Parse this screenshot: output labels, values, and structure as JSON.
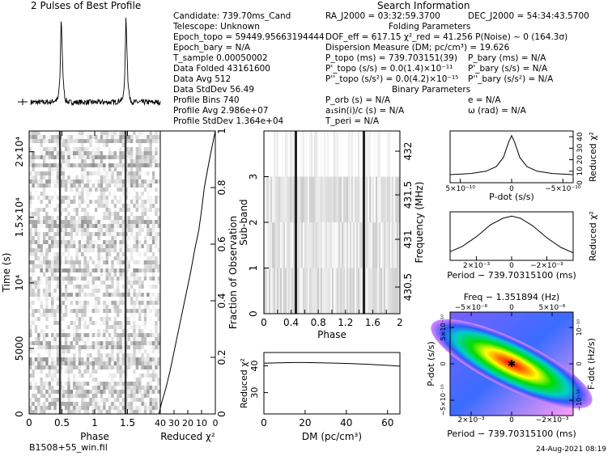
{
  "header": {
    "profile_title": "2 Pulses of Best Profile",
    "search_title": "Search Information",
    "folding_title": "Folding Parameters",
    "binary_title": "Binary Parameters"
  },
  "info_left": [
    "Candidate:  739.70ms_Cand",
    "Telescope:  Unknown",
    "Epoch_topo = 59449.95663194444",
    "Epoch_bary = N/A",
    "T_sample   0.00050002",
    "Data Folded   43161600",
    "Data Avg   512",
    "Data StdDev   56.49",
    "Profile Bins   740",
    "Profile Avg   2.986e+07",
    "Profile StdDev   1.364e+04"
  ],
  "search_info": {
    "ra": "RA_J2000 = 03:32:59.3700",
    "dec": "DEC_J2000 = 54:34:43.5700",
    "dof_line": "DOF_eff = 617.15  χ²_red = 41.256  P(Noise) ~ 0   (164.3σ)",
    "dm_line": "Dispersion Measure (DM; pc/cm³) = 19.626",
    "p_topo": "P_topo (ms) =  739.703151(39)",
    "pd_topo": "P'_topo (s/s) = 0.0(1.4)×10⁻¹¹",
    "pdd_topo": "P''_topo (s/s²) = 0.0(4.2)×10⁻¹⁵",
    "p_bary": "P_bary (ms) = N/A",
    "pd_bary": "P'_bary (s/s) = N/A",
    "pdd_bary": "P''_bary (s/s²) = N/A",
    "p_orb": "P_orb (s) = N/A",
    "a1": "a₁sin(i)/c (s) = N/A",
    "t_peri": "T_peri = N/A",
    "ecc": "e = N/A",
    "omega": "ω (rad) = N/A"
  },
  "footer": {
    "filename": "B1508+55_win.fil",
    "timestamp": "24-Aug-2021 08:19"
  },
  "colors": {
    "ink": "#000000",
    "grid_dark": "#222222"
  },
  "chart_data": [
    {
      "type": "line",
      "name": "profile",
      "title": "2 Pulses of Best Profile",
      "xlim": [
        0,
        2
      ],
      "x": [
        0,
        0.3,
        0.42,
        0.45,
        0.47,
        0.5,
        0.53,
        0.58,
        0.7,
        1.0,
        1.3,
        1.42,
        1.45,
        1.47,
        1.5,
        1.53,
        1.58,
        1.7,
        2.0
      ],
      "y": [
        0.05,
        0.05,
        0.08,
        0.3,
        1.0,
        0.3,
        0.08,
        0.05,
        0.05,
        0.05,
        0.05,
        0.08,
        0.3,
        1.0,
        0.3,
        0.08,
        0.05,
        0.05,
        0.05
      ]
    },
    {
      "type": "heatmap",
      "name": "time-phase",
      "xlabel": "Phase",
      "ylabel": "Time (s)",
      "xlim": [
        0,
        2
      ],
      "ylim": [
        0,
        21582
      ],
      "xticks": [
        "0",
        "0.5",
        "1",
        "1.5"
      ],
      "yticks": [
        "0",
        "5000",
        "10⁴",
        "1.5×10⁴",
        "2×10⁴"
      ],
      "ytick_values": [
        0,
        5000,
        10000,
        15000,
        20000
      ],
      "pulse_phases": [
        0.47,
        1.47
      ]
    },
    {
      "type": "line",
      "name": "reduced-chi2-vs-time",
      "xlabel": "Reduced χ²",
      "ylabel": "Fraction of Observation",
      "xticks": [
        "40",
        "30",
        "20",
        "10",
        "0"
      ],
      "xlim": [
        40,
        0
      ],
      "yticks": [
        "0",
        "0.2",
        "0.4",
        "0.6",
        "0.8",
        "1"
      ],
      "ylim": [
        0,
        1
      ],
      "x": [
        0,
        3,
        5,
        8,
        10,
        12,
        15,
        18,
        21,
        24,
        27,
        30,
        33,
        36,
        39,
        41
      ],
      "y": [
        1,
        0.93,
        0.88,
        0.8,
        0.72,
        0.65,
        0.58,
        0.5,
        0.43,
        0.36,
        0.29,
        0.22,
        0.15,
        0.09,
        0.04,
        0
      ]
    },
    {
      "type": "heatmap",
      "name": "subband-phase",
      "xlabel": "Phase",
      "ylabel": "Sub-band",
      "y2label": "Frequency (MHz)",
      "xticks": [
        "0",
        "0.2",
        "0.4",
        "0.6",
        "0.8",
        "1",
        "1.2",
        "1.4",
        "1.6",
        "1.8",
        "2"
      ],
      "xlim": [
        0,
        2
      ],
      "yticks": [
        "0",
        "1",
        "2",
        "3"
      ],
      "ylim": [
        0,
        4
      ],
      "y2ticks": [
        "430.5",
        "431",
        "431.5",
        "432"
      ],
      "pulse_phases": [
        0.47,
        1.47
      ]
    },
    {
      "type": "line",
      "name": "chi2-vs-dm",
      "xlabel": "DM (pc/cm³)",
      "ylabel": "Reduced χ²",
      "xticks": [
        "0",
        "20",
        "40",
        "60"
      ],
      "xlim": [
        0,
        66
      ],
      "yticks": [
        "30",
        "40"
      ],
      "ylim": [
        22,
        45
      ],
      "x": [
        0,
        5,
        10,
        15,
        19.6,
        25,
        30,
        40,
        50,
        60,
        66
      ],
      "y": [
        41.0,
        41.1,
        41.2,
        41.25,
        41.26,
        41.2,
        41.1,
        40.9,
        40.6,
        40.2,
        39.9
      ]
    },
    {
      "type": "line",
      "name": "chi2-vs-pdot",
      "xlabel": "P-dot (s/s)",
      "y2label": "Reduced χ²",
      "xticks": [
        "5×10⁻¹⁰",
        "0",
        "−5×10⁻¹⁰"
      ],
      "xlim": [
        6e-10,
        -6e-10
      ],
      "yticks": [
        "0",
        "10",
        "20",
        "30",
        "40"
      ],
      "ylim": [
        0,
        45
      ],
      "x": [
        6e-10,
        4e-10,
        2.5e-10,
        1.5e-10,
        8e-11,
        3e-11,
        0,
        -3e-11,
        -8e-11,
        -1.5e-10,
        -2.5e-10,
        -4e-10,
        -6e-10
      ],
      "y": [
        7,
        8,
        10,
        14,
        22,
        35,
        41,
        35,
        22,
        14,
        10,
        8,
        7
      ]
    },
    {
      "type": "line",
      "name": "chi2-vs-period",
      "xlabel": "Period − 739.70315100 (ms)",
      "y2label": "Reduced χ²",
      "xticks": [
        "2×10⁻³",
        "0",
        "−2×10⁻³"
      ],
      "xlim": [
        0.0035,
        -0.0035
      ],
      "x": [
        0.0035,
        0.0028,
        0.002,
        0.0012,
        0.0005,
        0,
        -0.0005,
        -0.0012,
        -0.002,
        -0.0028,
        -0.0035
      ],
      "y": [
        8,
        13,
        22,
        33,
        39,
        41,
        39,
        32,
        21,
        12,
        7
      ]
    },
    {
      "type": "heatmap",
      "name": "period-pdot-plane",
      "title": "Freq − 1.351894 (Hz)",
      "xlabel": "Period − 739.70315100 (ms)",
      "ylabel": "P-dot (s/s)",
      "y2label": "F-dot (Hz/s)",
      "xticks": [
        "2×10⁻³",
        "0",
        "−2×10⁻³"
      ],
      "x2ticks": [
        "−5×10⁻⁶",
        "0",
        "5×10⁻⁶"
      ],
      "yticks": [
        "5×10⁻¹⁰",
        "0",
        "−5×10⁻¹⁰"
      ],
      "y2ticks": [
        "10⁻¹⁰",
        "0",
        "−10⁻¹⁰"
      ],
      "peak": [
        0,
        0
      ]
    }
  ]
}
